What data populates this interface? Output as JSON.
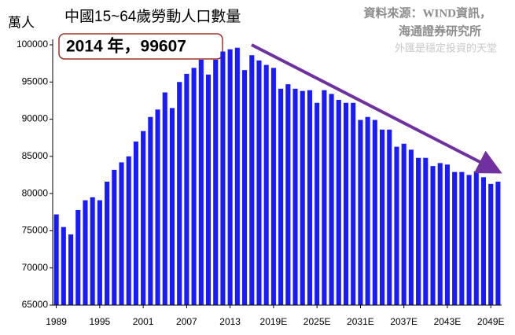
{
  "chart_data": {
    "type": "bar",
    "title": "中國15~64歲勞動人口數量",
    "y_label": "萬人",
    "annotation": "2014 年，99607",
    "source": [
      "資料來源：WIND資訊，",
      "海通證券研究所"
    ],
    "watermark": "外匯是穩定投資的天堂",
    "color": "#1a1aff",
    "categories": [
      "1989",
      null,
      null,
      null,
      null,
      null,
      "1995",
      null,
      null,
      null,
      null,
      null,
      "2001",
      null,
      null,
      null,
      null,
      null,
      "2007",
      null,
      null,
      null,
      null,
      null,
      "2013",
      null,
      null,
      null,
      null,
      null,
      "2019E",
      null,
      null,
      null,
      null,
      null,
      "2025E",
      null,
      null,
      null,
      null,
      null,
      "2031E",
      null,
      null,
      null,
      null,
      null,
      "2037E",
      null,
      null,
      null,
      null,
      null,
      "2043E",
      null,
      null,
      null,
      null,
      null,
      "2049E",
      null
    ],
    "values": [
      77200,
      75500,
      74500,
      77800,
      79100,
      79500,
      79100,
      81600,
      83200,
      84200,
      85000,
      87000,
      88400,
      90300,
      91300,
      93600,
      91500,
      95000,
      96100,
      96900,
      98000,
      96000,
      98000,
      99100,
      99400,
      99607,
      96600,
      98600,
      97900,
      97300,
      96900,
      94100,
      94700,
      94100,
      93800,
      93900,
      92200,
      93900,
      93400,
      92600,
      92200,
      92200,
      89900,
      90300,
      89900,
      88600,
      88600,
      86300,
      86700,
      85900,
      84800,
      84800,
      83700,
      84100,
      83900,
      82900,
      82900,
      82500,
      83000,
      82200,
      81300,
      81600
    ],
    "ylim": [
      65000,
      100000
    ],
    "yticks": [
      65000,
      70000,
      75000,
      80000,
      85000,
      90000,
      95000,
      100000
    ]
  }
}
